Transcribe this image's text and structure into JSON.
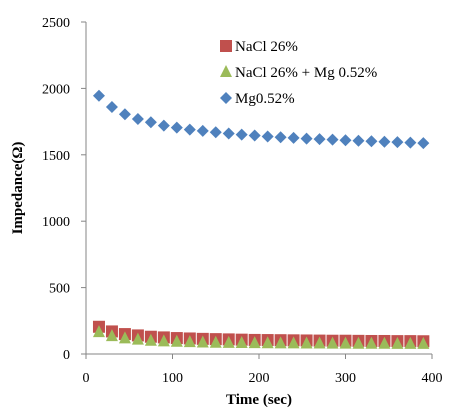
{
  "chart_data": {
    "type": "scatter",
    "title": "",
    "xlabel": "Time (sec)",
    "ylabel": "Impedance(Ω)",
    "xlim": [
      0,
      400
    ],
    "ylim": [
      0,
      2500
    ],
    "xticks": [
      0,
      100,
      200,
      300,
      400
    ],
    "yticks": [
      0,
      500,
      1000,
      1500,
      2000,
      2500
    ],
    "grid": false,
    "legend_position": "top-right",
    "series": [
      {
        "name": "NaCl 26%",
        "color": "#c0504d",
        "marker": "square",
        "x": [
          15,
          30,
          45,
          60,
          75,
          90,
          105,
          120,
          135,
          150,
          165,
          180,
          195,
          210,
          225,
          240,
          255,
          270,
          285,
          300,
          315,
          330,
          345,
          360,
          375,
          390
        ],
        "y": [
          205,
          170,
          150,
          140,
          130,
          125,
          120,
          117,
          114,
          112,
          110,
          108,
          106,
          105,
          104,
          103,
          102,
          101,
          100,
          100,
          99,
          98,
          98,
          97,
          97,
          96
        ]
      },
      {
        "name": "NaCl 26% + Mg 0.52%",
        "color": "#9bbb59",
        "marker": "triangle",
        "x": [
          15,
          30,
          45,
          60,
          75,
          90,
          105,
          120,
          135,
          150,
          165,
          180,
          195,
          210,
          225,
          240,
          255,
          270,
          285,
          300,
          315,
          330,
          345,
          360,
          375,
          390
        ],
        "y": [
          165,
          135,
          118,
          108,
          100,
          95,
          92,
          89,
          87,
          85,
          84,
          83,
          82,
          81,
          80,
          80,
          79,
          79,
          78,
          78,
          77,
          77,
          77,
          76,
          76,
          76
        ]
      },
      {
        "name": "Mg0.52%",
        "color": "#4f81bd",
        "marker": "diamond",
        "x": [
          15,
          30,
          45,
          60,
          75,
          90,
          105,
          120,
          135,
          150,
          165,
          180,
          195,
          210,
          225,
          240,
          255,
          270,
          285,
          300,
          315,
          330,
          345,
          360,
          375,
          390
        ],
        "y": [
          1945,
          1860,
          1805,
          1770,
          1745,
          1720,
          1705,
          1690,
          1680,
          1670,
          1660,
          1652,
          1645,
          1638,
          1632,
          1627,
          1622,
          1618,
          1614,
          1610,
          1606,
          1602,
          1598,
          1595,
          1592,
          1588
        ]
      }
    ]
  }
}
